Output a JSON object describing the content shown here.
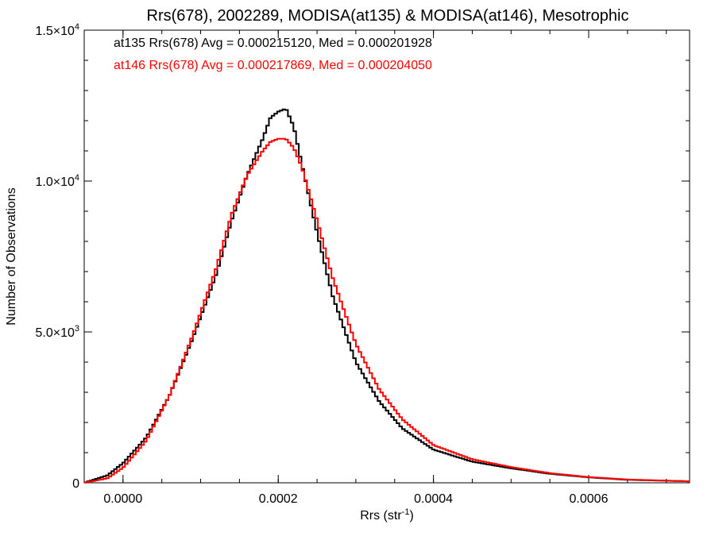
{
  "chart_data": {
    "type": "line",
    "title": "Rrs(678), 2002289, MODISA(at135) & MODISA(at146), Mesotrophic",
    "xlabel": "Rrs (str",
    "xlabel_sup": "-1",
    "xlabel_close": ")",
    "ylabel": "Number of Observations",
    "xlim": [
      -5e-05,
      0.00073
    ],
    "ylim": [
      0,
      15000
    ],
    "x_ticks": [
      {
        "value": 0.0,
        "label": "0.0000"
      },
      {
        "value": 0.0002,
        "label": "0.0002"
      },
      {
        "value": 0.0004,
        "label": "0.0004"
      },
      {
        "value": 0.0006,
        "label": "0.0006"
      }
    ],
    "y_ticks": [
      {
        "value": 0,
        "mant": "0",
        "exp": ""
      },
      {
        "value": 5000,
        "mant": "5.0×10",
        "exp": "3"
      },
      {
        "value": 10000,
        "mant": "1.0×10",
        "exp": "4"
      },
      {
        "value": 15000,
        "mant": "1.5×10",
        "exp": "4"
      }
    ],
    "grid": false,
    "legend_placement": "top-left",
    "series": [
      {
        "name": "at135",
        "legend": "at135 Rrs(678) Avg = 0.000215120, Med = 0.000201928",
        "color": "#000000",
        "x": [
          -5e-05,
          -2e-05,
          0.0,
          3e-05,
          6e-05,
          9e-05,
          0.00012,
          0.00014,
          0.00016,
          0.00018,
          0.00019,
          0.0002,
          0.00021,
          0.00022,
          0.00023,
          0.00025,
          0.00027,
          0.0003,
          0.00033,
          0.00036,
          0.0004,
          0.00045,
          0.0005,
          0.00055,
          0.0006,
          0.00065,
          0.00073
        ],
        "y": [
          0,
          250,
          650,
          1500,
          2900,
          4800,
          6900,
          8700,
          10200,
          11400,
          12100,
          12300,
          12400,
          11800,
          10600,
          8300,
          6200,
          4000,
          2700,
          1800,
          1100,
          700,
          480,
          300,
          180,
          100,
          50
        ]
      },
      {
        "name": "at146",
        "legend": "at146 Rrs(678) Avg = 0.000217869, Med = 0.000204050",
        "color": "#ff0000",
        "x": [
          -5e-05,
          -2e-05,
          0.0,
          3e-05,
          6e-05,
          9e-05,
          0.00012,
          0.00014,
          0.00016,
          0.00018,
          0.00019,
          0.0002,
          0.00021,
          0.00022,
          0.00023,
          0.00025,
          0.00027,
          0.0003,
          0.00033,
          0.00036,
          0.0004,
          0.00045,
          0.0005,
          0.00055,
          0.0006,
          0.00065,
          0.00073
        ],
        "y": [
          0,
          150,
          500,
          1400,
          2900,
          4900,
          7100,
          8900,
          10200,
          11000,
          11300,
          11400,
          11400,
          11100,
          10500,
          8700,
          6800,
          4600,
          3100,
          2100,
          1250,
          780,
          520,
          320,
          190,
          110,
          50
        ]
      }
    ]
  }
}
